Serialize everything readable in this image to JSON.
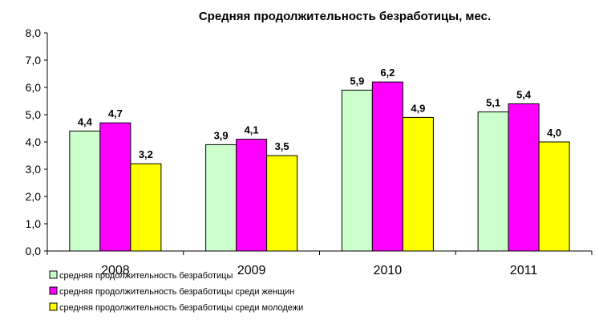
{
  "chart_data": {
    "type": "bar",
    "title": "Средняя продолжительность  безработицы,  мес.",
    "xlabel": "",
    "ylabel": "",
    "categories": [
      "2008",
      "2009",
      "2010",
      "2011"
    ],
    "ylim": [
      0,
      8
    ],
    "yticks": [
      "0,0",
      "1,0",
      "2,0",
      "3,0",
      "4,0",
      "5,0",
      "6,0",
      "7,0",
      "8,0"
    ],
    "grid": false,
    "legend_position": "bottom-left",
    "series": [
      {
        "name": "средняя продолжительность безработицы",
        "color": "#ccffcc",
        "values": [
          4.4,
          3.9,
          5.9,
          5.1
        ],
        "labels": [
          "4,4",
          "3,9",
          "5,9",
          "5,1"
        ]
      },
      {
        "name": "средняя продолжительность безработицы среди женщин",
        "color": "#ff00ff",
        "values": [
          4.7,
          4.1,
          6.2,
          5.4
        ],
        "labels": [
          "4,7",
          "4,1",
          "6,2",
          "5,4"
        ]
      },
      {
        "name": "средняя продолжительность безработицы среди молодежи",
        "color": "#ffff00",
        "values": [
          3.2,
          3.5,
          4.9,
          4.0
        ],
        "labels": [
          "3,2",
          "3,5",
          "4,9",
          "4,0"
        ]
      }
    ]
  }
}
